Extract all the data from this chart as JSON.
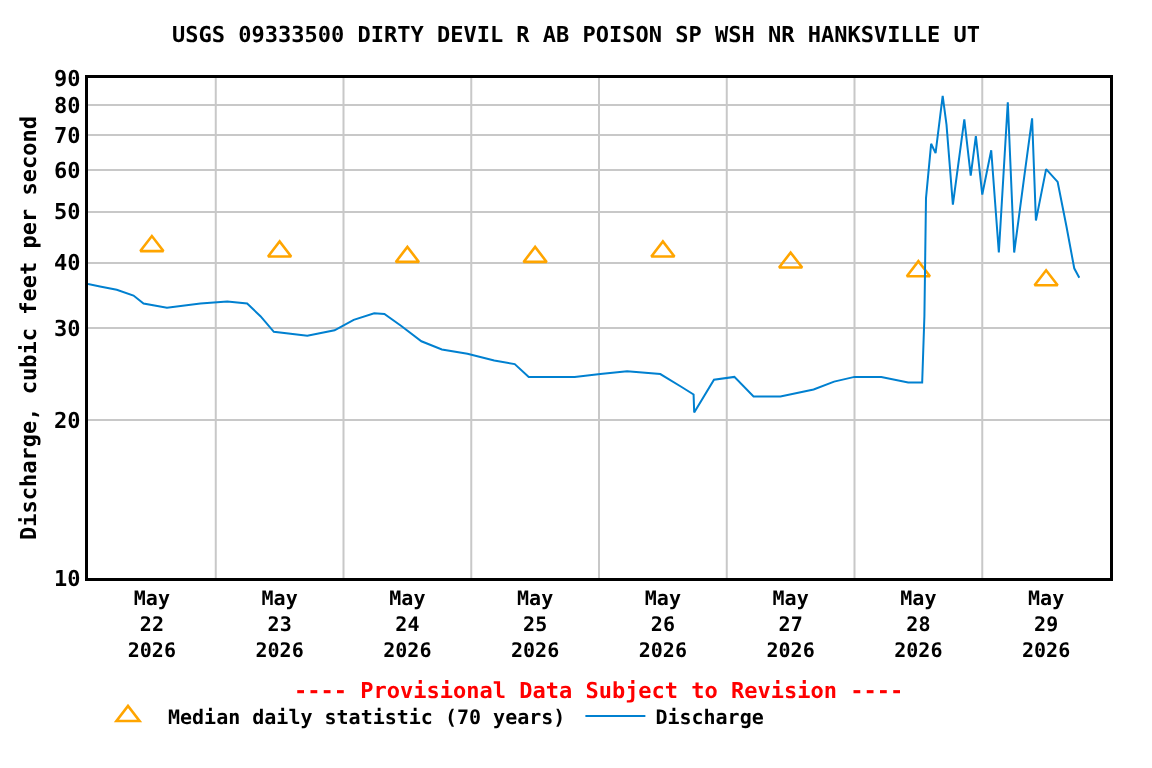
{
  "chart_data": {
    "type": "line",
    "title": "USGS 09333500 DIRTY DEVIL R AB POISON SP WSH NR HANKSVILLE UT",
    "ylabel": "Discharge, cubic feet per second",
    "annotations": [
      "---- Provisional Data Subject to Revision ----"
    ],
    "xlim": [
      "2026-05-22",
      "2026-05-30"
    ],
    "xticks": [
      {
        "value": "2026-05-22T12:00",
        "label": "May\n22\n2026"
      },
      {
        "value": "2026-05-23T12:00",
        "label": "May\n23\n2026"
      },
      {
        "value": "2026-05-24T12:00",
        "label": "May\n24\n2026"
      },
      {
        "value": "2026-05-25T12:00",
        "label": "May\n25\n2026"
      },
      {
        "value": "2026-05-26T12:00",
        "label": "May\n26\n2026"
      },
      {
        "value": "2026-05-27T12:00",
        "label": "May\n27\n2026"
      },
      {
        "value": "2026-05-28T12:00",
        "label": "May\n28\n2026"
      },
      {
        "value": "2026-05-29T12:00",
        "label": "May\n29\n2026"
      },
      {
        "value": "2026-05-23",
        "label": null
      },
      {
        "value": "2026-05-24",
        "label": null
      },
      {
        "value": "2026-05-25",
        "label": null
      },
      {
        "value": "2026-05-26",
        "label": null
      },
      {
        "value": "2026-05-27",
        "label": null
      },
      {
        "value": "2026-05-28",
        "label": null
      },
      {
        "value": "2026-05-29",
        "label": null
      }
    ],
    "ylim": [
      10,
      90
    ],
    "yticks": [
      10,
      20,
      30,
      40,
      50,
      60,
      70,
      80,
      90
    ],
    "log": "y",
    "grid": true,
    "legend": "bottom",
    "series": [
      {
        "name": "Median daily statistic (70 years)",
        "type": "scatter",
        "marker": "triangle",
        "color": "#ffa500",
        "x": [
          "2026-05-22T12:00",
          "2026-05-23T12:00",
          "2026-05-24T12:00",
          "2026-05-25T12:00",
          "2026-05-26T12:00",
          "2026-05-27T12:00",
          "2026-05-28T12:00",
          "2026-05-29T12:00"
        ],
        "values": [
          43,
          42,
          41,
          41,
          42,
          40,
          38.5,
          37
        ]
      },
      {
        "name": "Discharge",
        "marker": "none",
        "color": "#0080d0",
        "x": [
          "2026-05-22T00:00",
          "2026-05-22T02:15",
          "2026-05-22T05:24",
          "2026-05-22T08:33",
          "2026-05-22T10:26",
          "2026-05-22T14:50",
          "2026-05-22T21:07",
          "2026-05-23T02:10",
          "2026-05-23T05:54",
          "2026-05-23T08:24",
          "2026-05-23T10:55",
          "2026-05-23T17:12",
          "2026-05-23T22:19",
          "2026-05-24T01:55",
          "2026-05-24T05:46",
          "2026-05-24T07:41",
          "2026-05-24T10:48",
          "2026-05-24T14:38",
          "2026-05-24T18:29",
          "2026-05-24T23:17",
          "2026-05-25T04:19",
          "2026-05-25T08:10",
          "2026-05-25T10:48",
          "2026-05-25T15:36",
          "2026-05-25T19:26",
          "2026-05-26T00:14",
          "2026-05-26T05:17",
          "2026-05-26T11:31",
          "2026-05-26T15:22",
          "2026-05-26T17:46",
          "2026-05-26T17:53",
          "2026-05-26T21:36",
          "2026-05-27T01:26",
          "2026-05-27T05:02",
          "2026-05-27T10:05",
          "2026-05-27T16:19",
          "2026-05-27T20:10",
          "2026-05-28T00:00",
          "2026-05-28T05:02",
          "2026-05-28T10:05",
          "2026-05-28T12:43",
          "2026-05-28T13:08",
          "2026-05-28T13:26",
          "2026-05-28T14:24",
          "2026-05-28T15:14",
          "2026-05-28T16:34",
          "2026-05-28T17:17",
          "2026-05-28T18:29",
          "2026-05-28T20:38",
          "2026-05-28T21:50",
          "2026-05-28T22:48",
          "2026-05-29T00:00",
          "2026-05-29T01:41",
          "2026-05-29T03:07",
          "2026-05-29T04:48",
          "2026-05-29T06:00",
          "2026-05-29T07:55",
          "2026-05-29T09:22",
          "2026-05-29T10:05",
          "2026-05-29T12:00",
          "2026-05-29T14:10",
          "2026-05-29T15:50",
          "2026-05-29T17:17",
          "2026-05-29T18:14"
        ],
        "values": [
          36.4,
          36,
          35.5,
          34.6,
          33.4,
          32.8,
          33.4,
          33.7,
          33.4,
          31.6,
          29.5,
          29,
          29.7,
          31.1,
          32,
          31.9,
          30.3,
          28.3,
          27.3,
          26.8,
          26,
          25.6,
          24.2,
          24.2,
          24.2,
          24.5,
          24.8,
          24.5,
          23.2,
          22.4,
          20.7,
          23.9,
          24.2,
          22.2,
          22.2,
          22.9,
          23.7,
          24.2,
          24.2,
          23.6,
          23.6,
          31.6,
          53.1,
          67.4,
          64.7,
          83.2,
          73.3,
          51.6,
          75,
          58.6,
          69.7,
          53.9,
          65.5,
          41.8,
          80.9,
          41.8,
          58.6,
          75.4,
          48.1,
          60.3,
          57,
          46.8,
          39,
          37.4
        ]
      }
    ]
  }
}
